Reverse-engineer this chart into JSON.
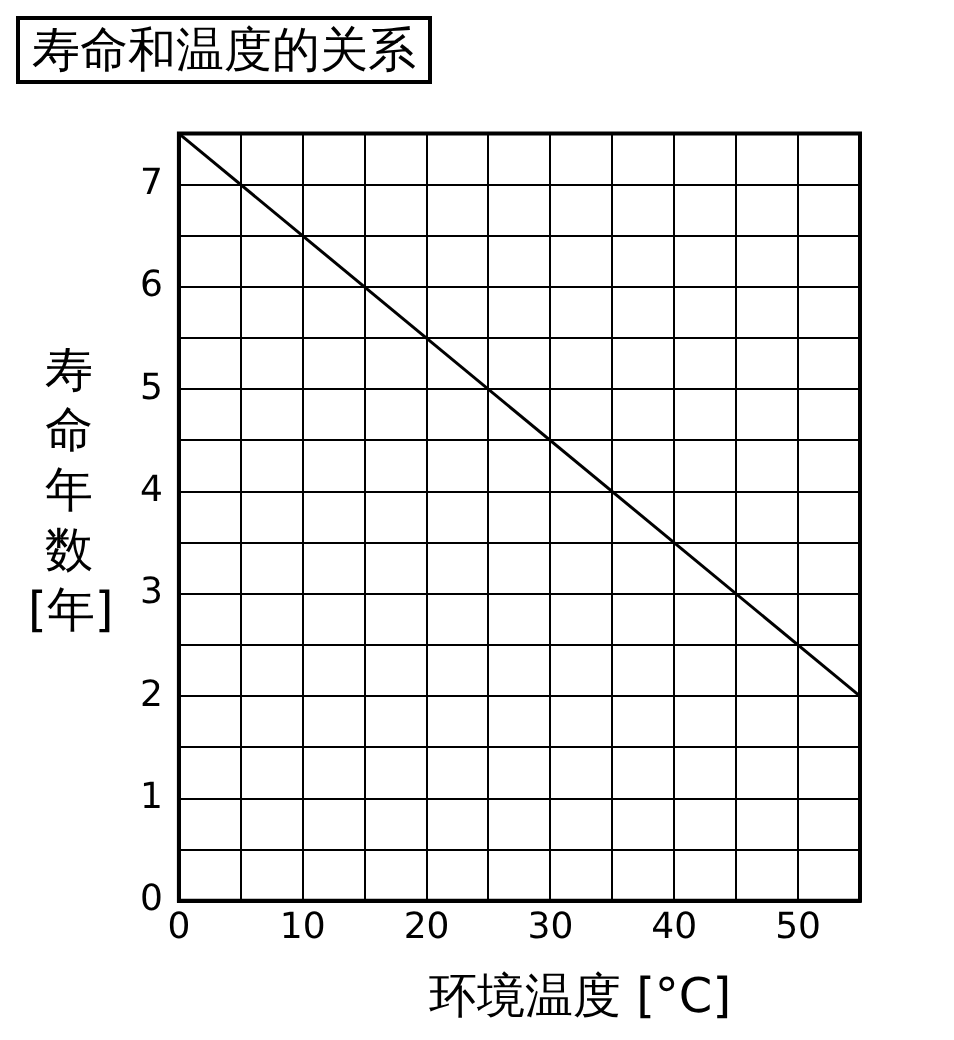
{
  "chart_data": {
    "type": "line",
    "title": "寿命和温度的关系",
    "xlabel": "环境温度 [°C]",
    "ylabel": "寿命年数[年]",
    "x": [
      0,
      55
    ],
    "series": [
      {
        "color": "#000000",
        "values": [
          7.5,
          2
        ]
      }
    ],
    "xlim": [
      0,
      55
    ],
    "xticks": [
      0,
      {
        "value": 5,
        "label": null
      },
      10,
      {
        "value": 15,
        "label": null
      },
      20,
      {
        "value": 25,
        "label": null
      },
      30,
      {
        "value": 35,
        "label": null
      },
      40,
      {
        "value": 45,
        "label": null
      },
      50,
      {
        "value": 55,
        "label": null
      }
    ],
    "ylim": [
      0,
      7.5
    ],
    "yticks": [
      0,
      {
        "value": 0.5,
        "label": null
      },
      1,
      {
        "value": 1.5,
        "label": null
      },
      2,
      {
        "value": 2.5,
        "label": null
      },
      3,
      {
        "value": 3.5,
        "label": null
      },
      4,
      {
        "value": 4.5,
        "label": null
      },
      5,
      {
        "value": 5.5,
        "label": null
      },
      6,
      {
        "value": 6.5,
        "label": null
      },
      7,
      {
        "value": 7.5,
        "label": null
      }
    ],
    "grid": true,
    "legend": false,
    "marker": "none",
    "line_style": "solid"
  }
}
